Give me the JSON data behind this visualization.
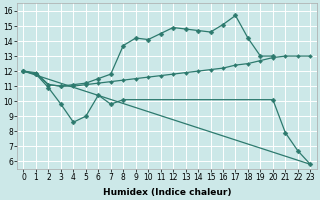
{
  "bg_color": "#cce8e8",
  "grid_color": "#ffffff",
  "line_color": "#2d7a6e",
  "xlabel": "Humidex (Indice chaleur)",
  "xlim": [
    -0.5,
    23.5
  ],
  "ylim": [
    5.5,
    16.5
  ],
  "xticks": [
    0,
    1,
    2,
    3,
    4,
    5,
    6,
    7,
    8,
    9,
    10,
    11,
    12,
    13,
    14,
    15,
    16,
    17,
    18,
    19,
    20,
    21,
    22,
    23
  ],
  "yticks": [
    6,
    7,
    8,
    9,
    10,
    11,
    12,
    13,
    14,
    15,
    16
  ],
  "series": [
    {
      "x": [
        0,
        1,
        2,
        3,
        4,
        5,
        6,
        7,
        8,
        20,
        21,
        22,
        23
      ],
      "y": [
        12.0,
        11.8,
        10.9,
        9.8,
        8.6,
        9.0,
        10.4,
        9.8,
        10.1,
        10.1,
        7.9,
        6.7,
        5.8
      ],
      "has_marker": true,
      "markersize": 2.5,
      "linewidth": 0.9
    },
    {
      "x": [
        0,
        23
      ],
      "y": [
        12.0,
        5.8
      ],
      "has_marker": false,
      "markersize": 0,
      "linewidth": 0.9
    },
    {
      "x": [
        0,
        1,
        2,
        3,
        4,
        5,
        6,
        7,
        8,
        9,
        10,
        11,
        12,
        13,
        14,
        15,
        16,
        17,
        18,
        19,
        20,
        21,
        22,
        23
      ],
      "y": [
        12.0,
        11.9,
        11.1,
        11.0,
        11.0,
        11.1,
        11.2,
        11.3,
        11.4,
        11.5,
        11.6,
        11.7,
        11.8,
        11.9,
        12.0,
        12.1,
        12.2,
        12.4,
        12.5,
        12.7,
        12.9,
        13.0,
        13.0,
        13.0
      ],
      "has_marker": true,
      "markersize": 2.0,
      "linewidth": 0.9
    },
    {
      "x": [
        0,
        1,
        2,
        3,
        4,
        5,
        6,
        7,
        8,
        9,
        10,
        11,
        12,
        13,
        14,
        15,
        16,
        17,
        18,
        19,
        20
      ],
      "y": [
        12.0,
        11.8,
        11.1,
        11.0,
        11.1,
        11.2,
        11.5,
        11.8,
        13.7,
        14.2,
        14.1,
        14.5,
        14.9,
        14.8,
        14.7,
        14.6,
        15.1,
        15.7,
        14.2,
        13.0,
        13.0
      ],
      "has_marker": true,
      "markersize": 2.5,
      "linewidth": 0.9
    }
  ]
}
